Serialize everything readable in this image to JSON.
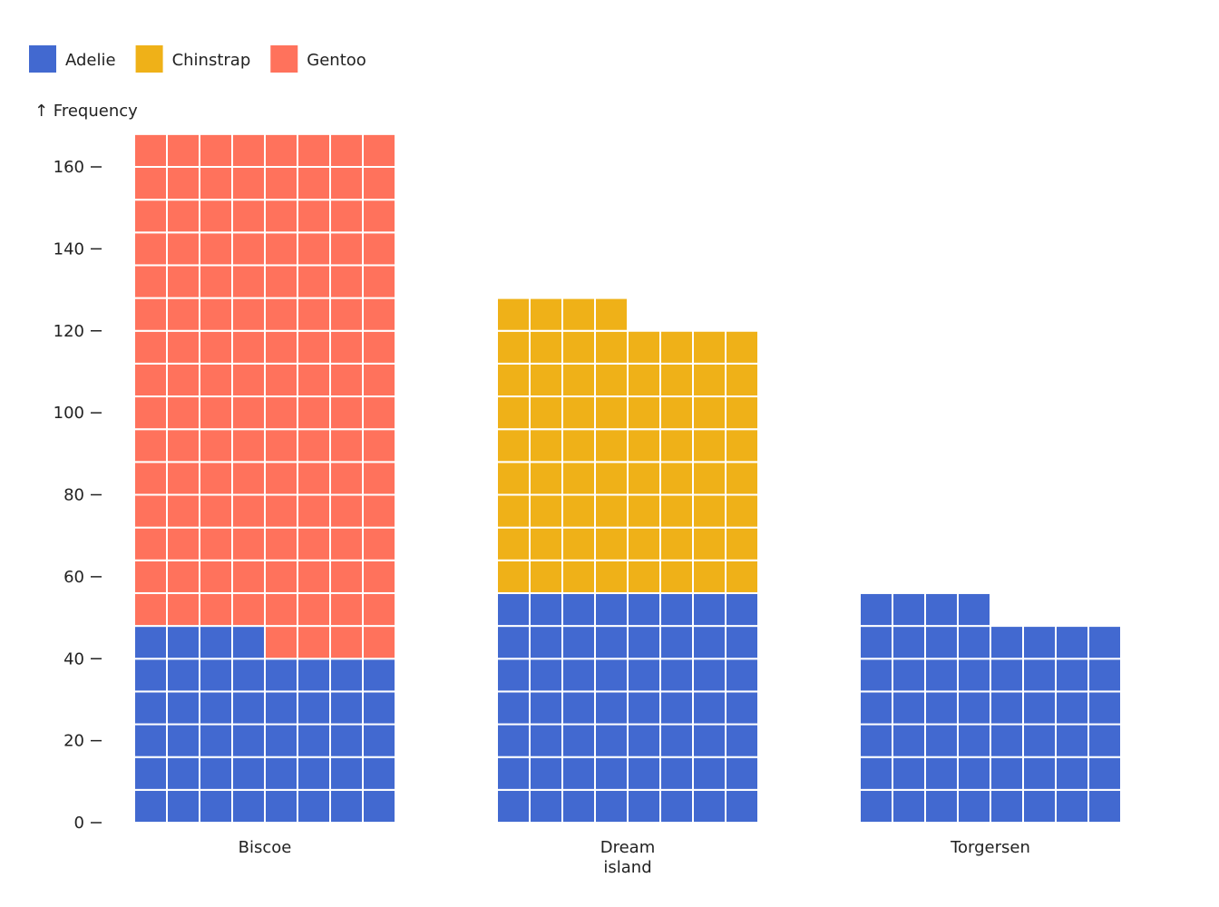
{
  "chart_data": {
    "type": "waffle",
    "ylabel": "↑ Frequency",
    "categories": [
      "Biscoe",
      "Dream\nisland",
      "Torgersen"
    ],
    "category_lines": [
      [
        "Biscoe"
      ],
      [
        "Dream",
        "island"
      ],
      [
        "Torgersen"
      ]
    ],
    "series": [
      {
        "name": "Adelie",
        "color": "#4269d0",
        "values": [
          44,
          56,
          52
        ]
      },
      {
        "name": "Chinstrap",
        "color": "#efb118",
        "values": [
          0,
          68,
          0
        ]
      },
      {
        "name": "Gentoo",
        "color": "#ff725c",
        "values": [
          124,
          0,
          0
        ]
      }
    ],
    "units_per_cell": 1,
    "cells_per_row": 8,
    "yticks": [
      0,
      20,
      40,
      60,
      80,
      100,
      120,
      140,
      160
    ],
    "ylim": [
      0,
      168
    ],
    "grid": false,
    "legend_placement": "top-left"
  }
}
